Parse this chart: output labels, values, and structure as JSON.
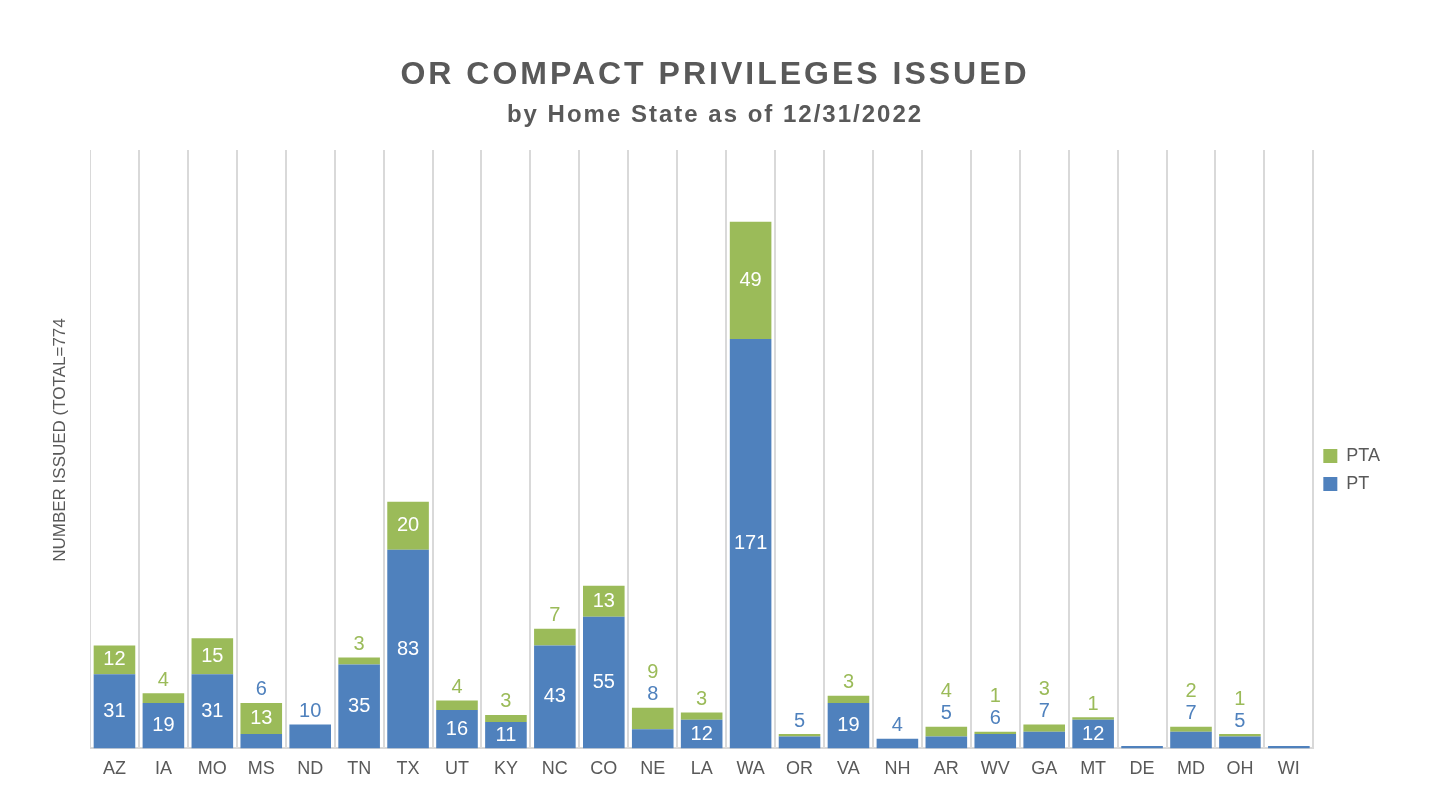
{
  "chart_data": {
    "type": "bar",
    "title": "OR COMPACT PRIVILEGES ISSUED",
    "subtitle": "by Home State as of 12/31/2022",
    "ylabel": "NUMBER ISSUED (TOTAL=774",
    "stacked": true,
    "grid": "x",
    "legend": "right",
    "tick_labels": "x",
    "categories": [
      "AZ",
      "IA",
      "MO",
      "MS",
      "ND",
      "TN",
      "TX",
      "UT",
      "KY",
      "NC",
      "CO",
      "NE",
      "LA",
      "WA",
      "OR",
      "VA",
      "NH",
      "AR",
      "WV",
      "GA",
      "MT",
      "DE",
      "MD",
      "OH",
      "WI"
    ],
    "series": [
      {
        "name": "PT",
        "color": "#4f81bd",
        "values": [
          31,
          19,
          31,
          6,
          10,
          35,
          83,
          16,
          11,
          43,
          55,
          8,
          12,
          171,
          5,
          19,
          4,
          5,
          6,
          7,
          12,
          1,
          7,
          5,
          1
        ],
        "value_labels": [
          "31",
          "19",
          "31",
          "6",
          "10",
          "35",
          "83",
          "16",
          "11",
          "43",
          "55",
          "8",
          "12",
          "171",
          "5",
          "19",
          "4",
          "5",
          "6",
          "7",
          "12",
          null,
          "7",
          "5",
          null
        ]
      },
      {
        "name": "PTA",
        "color": "#9bbb59",
        "values": [
          12,
          4,
          15,
          13,
          0,
          3,
          20,
          4,
          3,
          7,
          13,
          9,
          3,
          49,
          1,
          3,
          0,
          4,
          1,
          3,
          1,
          0,
          2,
          1,
          0
        ],
        "value_labels": [
          "12",
          "4",
          "15",
          "13",
          null,
          "3",
          "20",
          "4",
          "3",
          "7",
          "13",
          "9",
          "3",
          "49",
          null,
          "3",
          null,
          "4",
          "1",
          "3",
          "1",
          null,
          "2",
          "1",
          null
        ]
      }
    ]
  }
}
